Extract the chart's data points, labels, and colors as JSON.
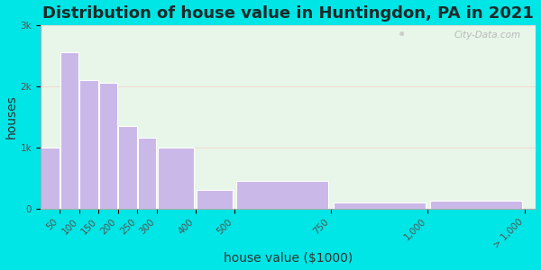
{
  "title": "Distribution of house value in Huntingdon, PA in 2021",
  "xlabel": "house value ($1000)",
  "ylabel": "houses",
  "bar_labels": [
    "50",
    "100",
    "150",
    "200",
    "250",
    "300",
    "400",
    "500",
    "750",
    "1,000",
    "> 1,000"
  ],
  "bar_values": [
    1000,
    2550,
    2100,
    2050,
    1350,
    1150,
    1000,
    300,
    450,
    100,
    130
  ],
  "bar_lefts": [
    0,
    1,
    2,
    3,
    4,
    5,
    6,
    7,
    8,
    9,
    10
  ],
  "bar_widths_rel": [
    1,
    1,
    1,
    1,
    1,
    1,
    1,
    2,
    2,
    1,
    1
  ],
  "bar_color": "#c9b8e8",
  "bar_edge_color": "#ffffff",
  "background_outer": "#00e5e5",
  "background_plot": "#e8f5e9",
  "ylim": [
    0,
    3000
  ],
  "yticks": [
    0,
    1000,
    2000,
    3000
  ],
  "ytick_labels": [
    "0",
    "1k",
    "2k",
    "3k"
  ],
  "title_fontsize": 13,
  "title_color": "#1a2a2a",
  "axis_label_fontsize": 10,
  "axis_label_color": "#333333",
  "tick_fontsize": 7.5,
  "watermark": "City-Data.com"
}
